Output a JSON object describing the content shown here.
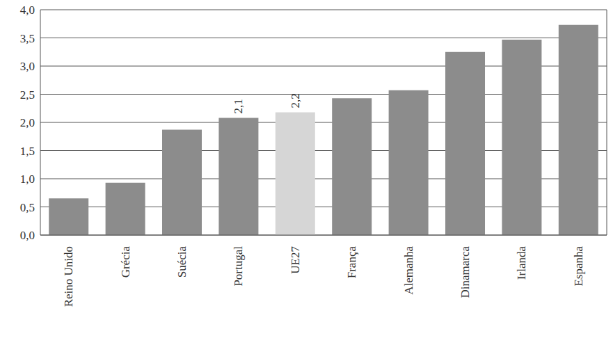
{
  "chart_data": {
    "type": "bar",
    "categories": [
      "Reino Unido",
      "Grécia",
      "Suécia",
      "Portugal",
      "UE27",
      "França",
      "Alemanha",
      "Dinamarca",
      "Irlanda",
      "Espanha"
    ],
    "values": [
      0.65,
      0.93,
      1.87,
      2.08,
      2.18,
      2.43,
      2.57,
      3.25,
      3.47,
      3.73
    ],
    "value_labels": [
      null,
      null,
      null,
      "2,1",
      "2,2",
      null,
      null,
      null,
      null,
      null
    ],
    "data_labels": true,
    "colors": [
      "#8c8c8c",
      "#8c8c8c",
      "#8c8c8c",
      "#8c8c8c",
      "#d6d6d6",
      "#8c8c8c",
      "#8c8c8c",
      "#8c8c8c",
      "#8c8c8c",
      "#8c8c8c"
    ],
    "ylim": [
      0,
      4
    ],
    "yticks": [
      {
        "value": 0,
        "label": "0,0"
      },
      {
        "value": 0.5,
        "label": "0,5"
      },
      {
        "value": 1,
        "label": "1,0"
      },
      {
        "value": 1.5,
        "label": "1,5"
      },
      {
        "value": 2,
        "label": "2,0"
      },
      {
        "value": 2.5,
        "label": "2,5"
      },
      {
        "value": 3,
        "label": "3,0"
      },
      {
        "value": 3.5,
        "label": "3,5"
      },
      {
        "value": 4,
        "label": "4,0"
      }
    ],
    "grid": true
  }
}
